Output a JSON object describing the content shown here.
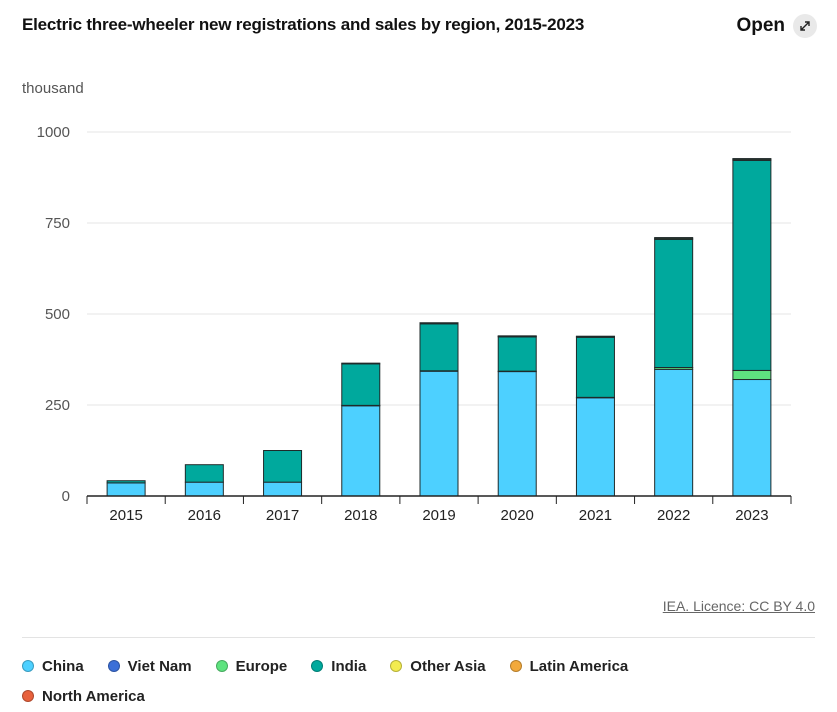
{
  "header": {
    "title": "Electric three-wheeler new registrations and sales by region, 2015-2023",
    "open_label": "Open"
  },
  "source_label": "IEA. Licence: CC BY 4.0",
  "chart_data": {
    "type": "bar",
    "stacked": true,
    "title": "Electric three-wheeler new registrations and sales by region, 2015-2023",
    "ylabel": "thousand",
    "xlabel": "",
    "ylim": [
      0,
      1000
    ],
    "yticks": [
      0,
      250,
      500,
      750,
      1000
    ],
    "grid": true,
    "legend_position": "bottom",
    "categories": [
      "2015",
      "2016",
      "2017",
      "2018",
      "2019",
      "2020",
      "2021",
      "2022",
      "2023"
    ],
    "series": [
      {
        "name": "China",
        "color": "#4dd0ff",
        "values": [
          36,
          38,
          38,
          248,
          343,
          342,
          270,
          348,
          320
        ]
      },
      {
        "name": "Viet Nam",
        "color": "#3b6fd8",
        "values": [
          0,
          0,
          0,
          0,
          0,
          0,
          0,
          0,
          0
        ]
      },
      {
        "name": "Europe",
        "color": "#5ee37f",
        "values": [
          0,
          0,
          0,
          1,
          1,
          1,
          1,
          5,
          25
        ]
      },
      {
        "name": "India",
        "color": "#00a99d",
        "values": [
          6,
          48,
          87,
          114,
          129,
          94,
          165,
          352,
          577
        ]
      },
      {
        "name": "Other Asia",
        "color": "#f3ec4f",
        "values": [
          0,
          0,
          0,
          2,
          2,
          2,
          2,
          3,
          3
        ]
      },
      {
        "name": "Latin America",
        "color": "#f2a93b",
        "values": [
          0,
          0,
          0,
          0,
          1,
          1,
          1,
          2,
          2
        ]
      },
      {
        "name": "North America",
        "color": "#e8613c",
        "values": [
          0,
          0,
          0,
          0,
          0,
          0,
          0,
          0,
          0
        ]
      }
    ]
  }
}
